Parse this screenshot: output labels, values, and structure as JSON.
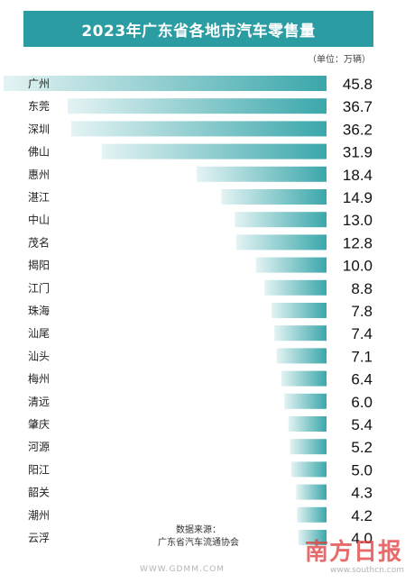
{
  "header": {
    "title": "2023年广东省各地市汽车零售量",
    "unit": "（单位：万辆）"
  },
  "colors": {
    "title_bg": "#2b9ca2",
    "bar_dark": "#3aa7ab",
    "bar_light": "#e4f3f3"
  },
  "chart_data": {
    "type": "bar",
    "orientation": "horizontal",
    "title": "2023年广东省各地市汽车零售量",
    "unit": "万辆",
    "categories": [
      "广州",
      "东莞",
      "深圳",
      "佛山",
      "惠州",
      "湛江",
      "中山",
      "茂名",
      "揭阳",
      "江门",
      "珠海",
      "汕尾",
      "汕头",
      "梅州",
      "清远",
      "肇庆",
      "河源",
      "阳江",
      "韶关",
      "潮州",
      "云浮"
    ],
    "values": [
      45.8,
      36.7,
      36.2,
      31.9,
      18.4,
      14.9,
      13.0,
      12.8,
      10.0,
      8.8,
      7.8,
      7.4,
      7.1,
      6.4,
      6.0,
      5.4,
      5.2,
      5.0,
      4.3,
      4.2,
      4.0
    ],
    "value_labels": [
      "45.8",
      "36.7",
      "36.2",
      "31.9",
      "18.4",
      "14.9",
      "13.0",
      "12.8",
      "10.0",
      "8.8",
      "7.8",
      "7.4",
      "7.1",
      "6.4",
      "6.0",
      "5.4",
      "5.2",
      "5.0",
      "4.3",
      "4.2",
      "4.0"
    ],
    "xlim": [
      0,
      45.8
    ]
  },
  "source": {
    "line1": "数据来源：",
    "line2": "广东省汽车流通协会"
  },
  "watermarks": {
    "gdmm": "WWW.GDMM.COM",
    "newspaper": "南方日报",
    "site": "www.southcn.com"
  }
}
